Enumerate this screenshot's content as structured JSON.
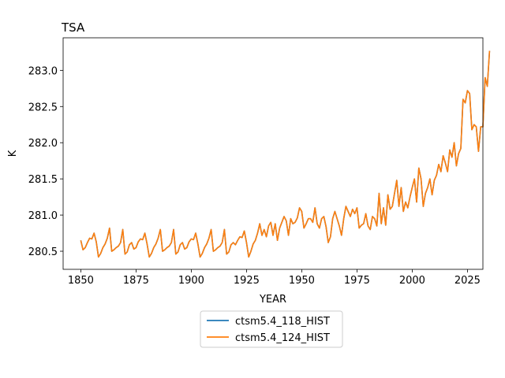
{
  "chart_data": {
    "type": "line",
    "title": "TSA",
    "xlabel": "YEAR",
    "ylabel": "K",
    "xlim": [
      1842,
      2032
    ],
    "ylim": [
      280.25,
      283.45
    ],
    "xticks": [
      1850,
      1875,
      1900,
      1925,
      1950,
      1975,
      2000,
      2025
    ],
    "yticks": [
      280.5,
      281.0,
      281.5,
      282.0,
      282.5,
      283.0
    ],
    "ytick_labels": [
      "280.5",
      "281.0",
      "281.5",
      "282.0",
      "282.5",
      "283.0"
    ],
    "grid": false,
    "legend_position": "below-center",
    "x_start": 1850,
    "x_step": 1,
    "series": [
      {
        "name": "ctsm5.4_118_HIST",
        "color": "#1f77b4",
        "values": [
          280.65,
          280.52,
          280.55,
          280.62,
          280.68,
          280.67,
          280.75,
          280.63,
          280.42,
          280.47,
          280.55,
          280.6,
          280.68,
          280.82,
          280.5,
          280.52,
          280.55,
          280.57,
          280.62,
          280.8,
          280.46,
          280.49,
          280.59,
          280.62,
          280.53,
          280.55,
          280.63,
          280.67,
          280.66,
          280.75,
          280.6,
          280.42,
          280.47,
          280.55,
          280.6,
          280.68,
          280.8,
          280.5,
          280.52,
          280.55,
          280.57,
          280.62,
          280.8,
          280.46,
          280.49,
          280.59,
          280.62,
          280.53,
          280.55,
          280.63,
          280.67,
          280.66,
          280.75,
          280.6,
          280.42,
          280.47,
          280.55,
          280.6,
          280.68,
          280.8,
          280.5,
          280.52,
          280.55,
          280.57,
          280.62,
          280.8,
          280.46,
          280.49,
          280.59,
          280.62,
          280.59,
          280.65,
          280.7,
          280.69,
          280.78,
          280.62,
          280.42,
          280.5,
          280.6,
          280.65,
          280.75,
          280.88,
          280.72,
          280.8,
          280.7,
          280.85,
          280.9,
          280.72,
          280.88,
          280.65,
          280.82,
          280.9,
          280.98,
          280.92,
          280.72,
          280.95,
          280.88,
          280.9,
          280.96,
          281.1,
          281.05,
          280.82,
          280.88,
          280.95,
          280.95,
          280.9,
          281.1,
          280.88,
          280.82,
          280.95,
          280.98,
          280.84,
          280.62,
          280.7,
          280.95,
          281.05,
          280.95,
          280.85,
          280.72,
          280.95,
          281.12,
          281.05,
          280.98,
          281.08,
          281.02,
          281.1,
          280.82,
          280.86,
          280.88,
          281.02,
          280.85,
          280.8,
          280.98,
          280.95,
          280.85,
          281.3,
          280.88,
          281.1,
          280.86,
          281.28,
          281.08,
          281.12,
          281.3,
          281.48,
          281.12,
          281.38,
          281.05,
          281.18,
          281.1,
          281.25,
          281.38,
          281.5,
          281.18,
          281.65,
          281.5,
          281.12,
          281.3,
          281.38,
          281.5,
          281.28,
          281.48,
          281.55,
          281.7,
          281.6,
          281.82,
          281.72,
          281.6,
          281.9,
          281.8,
          282.0,
          281.68,
          281.85,
          281.92,
          282.6,
          282.55,
          282.72,
          282.68,
          282.18,
          282.25,
          282.22,
          281.88,
          282.22,
          282.22,
          282.9,
          282.78,
          283.27
        ]
      },
      {
        "name": "ctsm5.4_124_HIST",
        "color": "#ff7f0e",
        "values": [
          280.65,
          280.52,
          280.55,
          280.62,
          280.68,
          280.67,
          280.75,
          280.63,
          280.42,
          280.47,
          280.55,
          280.6,
          280.68,
          280.82,
          280.5,
          280.52,
          280.55,
          280.57,
          280.62,
          280.8,
          280.46,
          280.49,
          280.59,
          280.62,
          280.53,
          280.55,
          280.63,
          280.67,
          280.66,
          280.75,
          280.6,
          280.42,
          280.47,
          280.55,
          280.6,
          280.68,
          280.8,
          280.5,
          280.52,
          280.55,
          280.57,
          280.62,
          280.8,
          280.46,
          280.49,
          280.59,
          280.62,
          280.53,
          280.55,
          280.63,
          280.67,
          280.66,
          280.75,
          280.6,
          280.42,
          280.47,
          280.55,
          280.6,
          280.68,
          280.8,
          280.5,
          280.52,
          280.55,
          280.57,
          280.62,
          280.8,
          280.46,
          280.49,
          280.59,
          280.62,
          280.59,
          280.65,
          280.7,
          280.69,
          280.78,
          280.62,
          280.42,
          280.5,
          280.6,
          280.65,
          280.75,
          280.88,
          280.72,
          280.8,
          280.7,
          280.85,
          280.9,
          280.72,
          280.88,
          280.65,
          280.82,
          280.9,
          280.98,
          280.92,
          280.72,
          280.95,
          280.88,
          280.9,
          280.96,
          281.1,
          281.05,
          280.82,
          280.88,
          280.95,
          280.95,
          280.9,
          281.1,
          280.88,
          280.82,
          280.95,
          280.98,
          280.84,
          280.62,
          280.7,
          280.95,
          281.05,
          280.95,
          280.85,
          280.72,
          280.95,
          281.12,
          281.05,
          280.98,
          281.08,
          281.02,
          281.1,
          280.82,
          280.86,
          280.88,
          281.02,
          280.85,
          280.8,
          280.98,
          280.95,
          280.85,
          281.3,
          280.88,
          281.1,
          280.86,
          281.28,
          281.08,
          281.12,
          281.3,
          281.48,
          281.12,
          281.38,
          281.05,
          281.18,
          281.1,
          281.25,
          281.38,
          281.5,
          281.18,
          281.65,
          281.5,
          281.12,
          281.3,
          281.38,
          281.5,
          281.28,
          281.48,
          281.55,
          281.7,
          281.6,
          281.82,
          281.72,
          281.6,
          281.9,
          281.8,
          282.0,
          281.68,
          281.85,
          281.92,
          282.6,
          282.55,
          282.72,
          282.68,
          282.18,
          282.25,
          282.22,
          281.88,
          282.22,
          282.22,
          282.9,
          282.78,
          283.27
        ]
      }
    ]
  }
}
